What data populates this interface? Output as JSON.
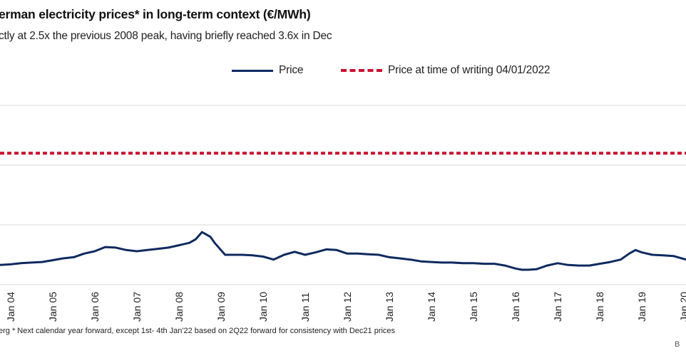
{
  "title": "erman electricity prices* in long-term context (€/MWh)",
  "subtitle": "ctly at 2.5x the previous 2008 peak, having briefly reached 3.6x in Dec",
  "footnote": "erg * Next calendar year forward, except 1st- 4th Jan'22 based on 2Q22 forward for consistency with Dec21 prices",
  "source_mark": "B",
  "colors": {
    "price": "#0f2a5f",
    "reference": "#c8102e",
    "grid": "#d9d9d9"
  },
  "chart_data": {
    "type": "line",
    "title": "erman electricity prices* in long-term context (€/MWh)",
    "subtitle": "ctly at 2.5x the previous 2008 peak, having briefly reached 3.6x in Dec",
    "xlabel": "",
    "ylabel": "",
    "legend_placement": "top",
    "grid": true,
    "x_ticks": [
      "Jan 04",
      "Jan 05",
      "Jan 06",
      "Jan 07",
      "Jan 08",
      "Jan 09",
      "Jan 10",
      "Jan 11",
      "Jan 12",
      "Jan 13",
      "Jan 14",
      "Jan 15",
      "Jan 16",
      "Jan 17",
      "Jan 18",
      "Jan 19",
      "Jan 20"
    ],
    "xlim": [
      2003.75,
      2020.05
    ],
    "ylim": [
      0,
      300
    ],
    "series": [
      {
        "name": "Price",
        "color": "#0f2a5f",
        "x": [
          2003.75,
          2004.0,
          2004.25,
          2004.5,
          2004.75,
          2005.0,
          2005.25,
          2005.5,
          2005.75,
          2006.0,
          2006.25,
          2006.5,
          2006.75,
          2007.0,
          2007.25,
          2007.5,
          2007.75,
          2008.0,
          2008.25,
          2008.4,
          2008.55,
          2008.65,
          2008.75,
          2008.85,
          2009.0,
          2009.1,
          2009.25,
          2009.5,
          2009.75,
          2010.0,
          2010.25,
          2010.5,
          2010.75,
          2011.0,
          2011.25,
          2011.5,
          2011.75,
          2012.0,
          2012.25,
          2012.5,
          2012.75,
          2013.0,
          2013.25,
          2013.5,
          2013.75,
          2014.0,
          2014.25,
          2014.5,
          2014.75,
          2015.0,
          2015.25,
          2015.5,
          2015.75,
          2016.0,
          2016.15,
          2016.3,
          2016.5,
          2016.75,
          2017.0,
          2017.25,
          2017.5,
          2017.75,
          2018.0,
          2018.25,
          2018.5,
          2018.7,
          2018.85,
          2019.0,
          2019.25,
          2019.5,
          2019.75,
          2020.05
        ],
        "y": [
          33,
          34,
          36,
          37,
          38,
          41,
          44,
          46,
          52,
          56,
          63,
          62,
          58,
          56,
          58,
          60,
          62,
          66,
          70,
          76,
          88,
          84,
          80,
          70,
          58,
          50,
          50,
          50,
          49,
          47,
          42,
          50,
          55,
          50,
          54,
          59,
          58,
          52,
          52,
          51,
          50,
          46,
          44,
          42,
          39,
          38,
          37,
          37,
          36,
          36,
          35,
          35,
          32,
          27,
          25,
          25,
          26,
          32,
          36,
          33,
          32,
          32,
          35,
          38,
          42,
          52,
          58,
          54,
          50,
          49,
          48,
          42
        ]
      },
      {
        "name": "Price at time of writing 04/01/2022",
        "color": "#c8102e",
        "style": "dashed",
        "x": [
          2003.75,
          2020.05
        ],
        "y": [
          220,
          220
        ]
      }
    ]
  }
}
